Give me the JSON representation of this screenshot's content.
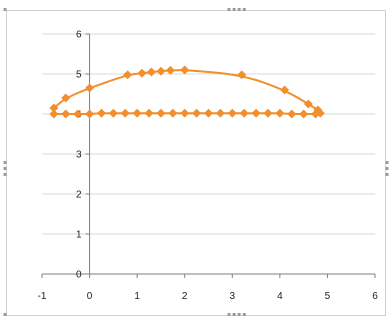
{
  "chart_data": {
    "type": "scatter",
    "title": "",
    "xlabel": "",
    "ylabel": "",
    "xlim": [
      -1,
      6
    ],
    "ylim": [
      0,
      6
    ],
    "x_ticks": [
      "-1",
      "0",
      "1",
      "2",
      "3",
      "4",
      "5",
      "6"
    ],
    "y_ticks": [
      "0",
      "1",
      "2",
      "3",
      "4",
      "5",
      "6"
    ],
    "grid": {
      "horizontal": true,
      "vertical": false
    },
    "legend": "none",
    "colors": {
      "series": "#f28e2b",
      "gridline": "#d9d9d9",
      "axis": "#7f7f7f"
    },
    "series": [
      {
        "x": [
          -0.75,
          -0.5,
          0,
          0.8,
          1.1,
          1.3,
          1.5,
          1.7,
          2.0,
          3.2,
          4.1,
          4.6,
          4.8,
          4.85,
          4.75,
          4.5,
          4.25,
          4.0,
          3.75,
          3.5,
          3.25,
          3.0,
          2.75,
          2.5,
          2.25,
          2.0,
          1.75,
          1.5,
          1.25,
          1.0,
          0.75,
          0.5,
          0.25,
          0.0,
          -0.25,
          -0.5,
          -0.75
        ],
        "y": [
          4.15,
          4.4,
          4.65,
          4.98,
          5.02,
          5.05,
          5.07,
          5.09,
          5.1,
          4.98,
          4.6,
          4.25,
          4.1,
          4.02,
          4.0,
          4.0,
          4.0,
          4.02,
          4.02,
          4.02,
          4.02,
          4.02,
          4.02,
          4.02,
          4.02,
          4.02,
          4.02,
          4.02,
          4.02,
          4.02,
          4.02,
          4.02,
          4.02,
          4.0,
          4.0,
          4.0,
          4.0
        ]
      }
    ]
  }
}
